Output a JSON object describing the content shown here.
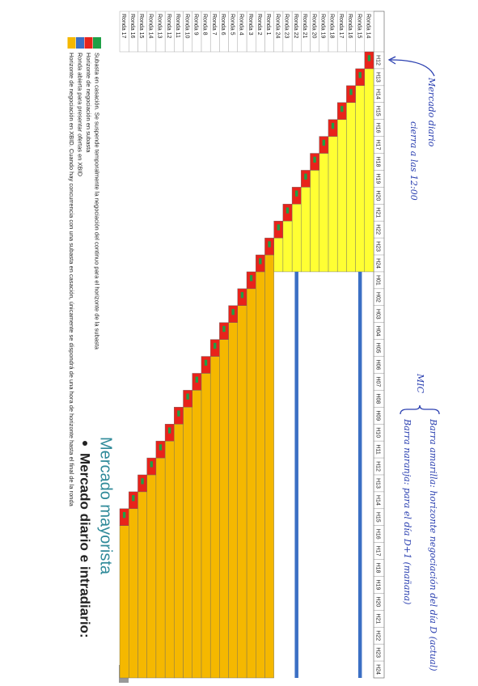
{
  "slide": {
    "title": "Mercado mayorista",
    "bullet": "Mercado diario e intradiario:"
  },
  "table": {
    "round_labels": [
      "Ronda 14",
      "Ronda 15",
      "Ronda 16",
      "Ronda 17",
      "Ronda 18",
      "Ronda 19",
      "Ronda 20",
      "Ronda 21",
      "Ronda 22",
      "Ronda 23",
      "Ronda 24",
      "Ronda 1",
      "Ronda 2",
      "Ronda 3",
      "Ronda 4",
      "Ronda 5",
      "Ronda 6",
      "Ronda 7",
      "Ronda 8",
      "Ronda 9",
      "Ronda 10",
      "Ronda 11",
      "Ronda 12",
      "Ronda 13",
      "Ronda 14",
      "Ronda 15",
      "Ronda 16",
      "Ronda 17"
    ],
    "hour_labels": [
      "H12",
      "H13",
      "H14",
      "H15",
      "H16",
      "H17",
      "H18",
      "H19",
      "H20",
      "H21",
      "H22",
      "H23",
      "H24",
      "H01",
      "H02",
      "H03",
      "H04",
      "H05",
      "H06",
      "H07",
      "H08",
      "H09",
      "H10",
      "H11",
      "H12",
      "H13",
      "H14",
      "H15",
      "H16",
      "H17",
      "H18",
      "H19",
      "H20",
      "H21",
      "H22",
      "H23",
      "H24"
    ]
  },
  "legend": [
    {
      "color": "#1fa046",
      "label": "Subasta en casación. Se suspende temporalmente la negociación del continuo para el horizonte de la subasta"
    },
    {
      "color": "#e8231b",
      "label": "Horizonte de negociación en subasta"
    },
    {
      "color": "#3b6fc4",
      "label": "Ronda abierta para presentar ofertas en XBID"
    },
    {
      "color": "#f5b800",
      "label": "Horizonte de negociación en XBID. Cuando hay concurrencia con una subasta en casación, únicamente se dispondrá de una hora de horizonte hasta el final de la ronda"
    }
  ],
  "annotations": {
    "daily_1": "Mercado diario",
    "daily_2": "cierra a las 12:00",
    "mic": "MIC",
    "yellow": "Barra amarilla: horizonte negociación del día D (actual)",
    "orange": "Barra naranja: para el día D+1 (mañana)"
  }
}
